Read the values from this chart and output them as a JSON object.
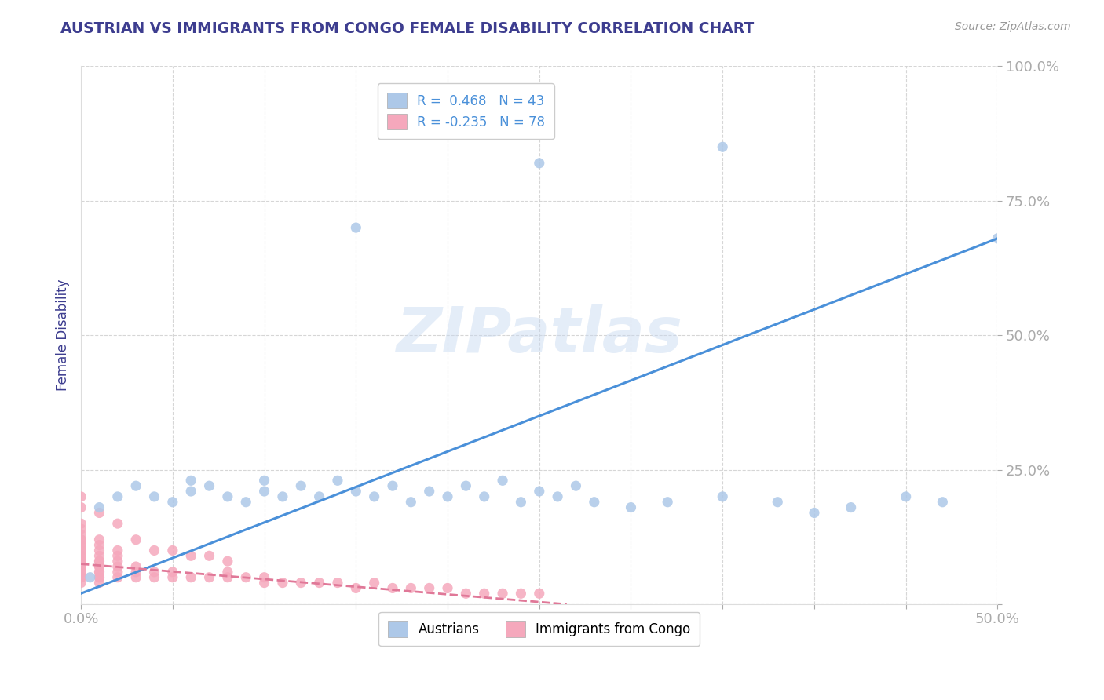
{
  "title": "AUSTRIAN VS IMMIGRANTS FROM CONGO FEMALE DISABILITY CORRELATION CHART",
  "source": "Source: ZipAtlas.com",
  "ylabel": "Female Disability",
  "xlim": [
    0.0,
    0.5
  ],
  "ylim": [
    0.0,
    1.0
  ],
  "blue_R": 0.468,
  "blue_N": 43,
  "pink_R": -0.235,
  "pink_N": 78,
  "blue_color": "#adc8e8",
  "pink_color": "#f5a8bc",
  "blue_line_color": "#4a90d9",
  "pink_line_color": "#e07898",
  "legend_label_blue": "Austrians",
  "legend_label_pink": "Immigrants from Congo",
  "watermark": "ZIPatlas",
  "blue_x": [
    0.005,
    0.01,
    0.02,
    0.03,
    0.04,
    0.05,
    0.06,
    0.06,
    0.07,
    0.08,
    0.09,
    0.1,
    0.1,
    0.11,
    0.12,
    0.13,
    0.14,
    0.15,
    0.16,
    0.17,
    0.18,
    0.19,
    0.2,
    0.21,
    0.22,
    0.23,
    0.24,
    0.25,
    0.26,
    0.27,
    0.28,
    0.3,
    0.32,
    0.35,
    0.38,
    0.4,
    0.42,
    0.45,
    0.47,
    0.5,
    0.15,
    0.25,
    0.35
  ],
  "blue_y": [
    0.05,
    0.18,
    0.2,
    0.22,
    0.2,
    0.19,
    0.21,
    0.23,
    0.22,
    0.2,
    0.19,
    0.21,
    0.23,
    0.2,
    0.22,
    0.2,
    0.23,
    0.21,
    0.2,
    0.22,
    0.19,
    0.21,
    0.2,
    0.22,
    0.2,
    0.23,
    0.19,
    0.21,
    0.2,
    0.22,
    0.19,
    0.18,
    0.19,
    0.2,
    0.19,
    0.17,
    0.18,
    0.2,
    0.19,
    0.68,
    0.7,
    0.82,
    0.85
  ],
  "pink_x": [
    0.0,
    0.0,
    0.0,
    0.0,
    0.0,
    0.0,
    0.0,
    0.0,
    0.0,
    0.0,
    0.0,
    0.0,
    0.0,
    0.0,
    0.0,
    0.0,
    0.0,
    0.0,
    0.0,
    0.0,
    0.01,
    0.01,
    0.01,
    0.01,
    0.01,
    0.01,
    0.01,
    0.01,
    0.01,
    0.01,
    0.01,
    0.01,
    0.01,
    0.02,
    0.02,
    0.02,
    0.02,
    0.02,
    0.02,
    0.03,
    0.03,
    0.03,
    0.04,
    0.04,
    0.05,
    0.05,
    0.06,
    0.07,
    0.08,
    0.08,
    0.09,
    0.1,
    0.1,
    0.11,
    0.12,
    0.13,
    0.14,
    0.15,
    0.16,
    0.17,
    0.18,
    0.19,
    0.2,
    0.21,
    0.22,
    0.23,
    0.24,
    0.25,
    0.0,
    0.0,
    0.01,
    0.02,
    0.03,
    0.04,
    0.05,
    0.06,
    0.07,
    0.08
  ],
  "pink_y": [
    0.05,
    0.06,
    0.07,
    0.08,
    0.09,
    0.1,
    0.11,
    0.12,
    0.13,
    0.14,
    0.15,
    0.04,
    0.05,
    0.06,
    0.07,
    0.08,
    0.09,
    0.1,
    0.11,
    0.12,
    0.05,
    0.06,
    0.07,
    0.08,
    0.09,
    0.1,
    0.11,
    0.12,
    0.04,
    0.05,
    0.06,
    0.07,
    0.08,
    0.05,
    0.06,
    0.07,
    0.08,
    0.09,
    0.1,
    0.05,
    0.06,
    0.07,
    0.05,
    0.06,
    0.05,
    0.06,
    0.05,
    0.05,
    0.05,
    0.06,
    0.05,
    0.04,
    0.05,
    0.04,
    0.04,
    0.04,
    0.04,
    0.03,
    0.04,
    0.03,
    0.03,
    0.03,
    0.03,
    0.02,
    0.02,
    0.02,
    0.02,
    0.02,
    0.18,
    0.2,
    0.17,
    0.15,
    0.12,
    0.1,
    0.1,
    0.09,
    0.09,
    0.08
  ],
  "background_color": "#ffffff",
  "grid_color": "#cccccc",
  "title_color": "#3d3d8f",
  "axis_label_color": "#3d3d8f",
  "tick_label_color": "#4a90d9"
}
